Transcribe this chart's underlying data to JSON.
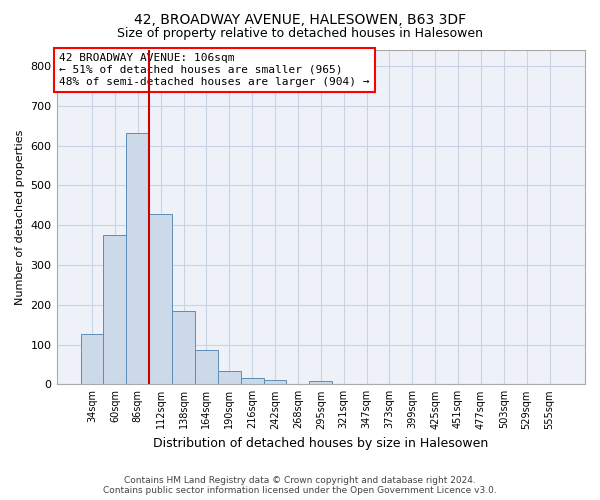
{
  "title": "42, BROADWAY AVENUE, HALESOWEN, B63 3DF",
  "subtitle": "Size of property relative to detached houses in Halesowen",
  "xlabel": "Distribution of detached houses by size in Halesowen",
  "ylabel": "Number of detached properties",
  "bin_labels": [
    "34sqm",
    "60sqm",
    "86sqm",
    "112sqm",
    "138sqm",
    "164sqm",
    "190sqm",
    "216sqm",
    "242sqm",
    "268sqm",
    "295sqm",
    "321sqm",
    "347sqm",
    "373sqm",
    "399sqm",
    "425sqm",
    "451sqm",
    "477sqm",
    "503sqm",
    "529sqm",
    "555sqm"
  ],
  "bar_values": [
    127,
    375,
    632,
    428,
    185,
    87,
    33,
    17,
    10,
    0,
    8,
    0,
    0,
    0,
    0,
    0,
    0,
    0,
    0,
    0,
    0
  ],
  "bar_color": "#ccd9e8",
  "bar_edge_color": "#5b8db8",
  "vline_x_index": 2.5,
  "annotation_line1": "42 BROADWAY AVENUE: 106sqm",
  "annotation_line2": "← 51% of detached houses are smaller (965)",
  "annotation_line3": "48% of semi-detached houses are larger (904) →",
  "annotation_box_color": "white",
  "annotation_box_edge_color": "red",
  "vline_color": "#cc0000",
  "ylim": [
    0,
    840
  ],
  "yticks": [
    0,
    100,
    200,
    300,
    400,
    500,
    600,
    700,
    800
  ],
  "grid_color": "#c8d4e4",
  "bg_color": "#eef2f8",
  "footer_line1": "Contains HM Land Registry data © Crown copyright and database right 2024.",
  "footer_line2": "Contains public sector information licensed under the Open Government Licence v3.0.",
  "title_fontsize": 10,
  "subtitle_fontsize": 9,
  "annotation_fontsize": 8,
  "ylabel_fontsize": 8,
  "xlabel_fontsize": 9
}
